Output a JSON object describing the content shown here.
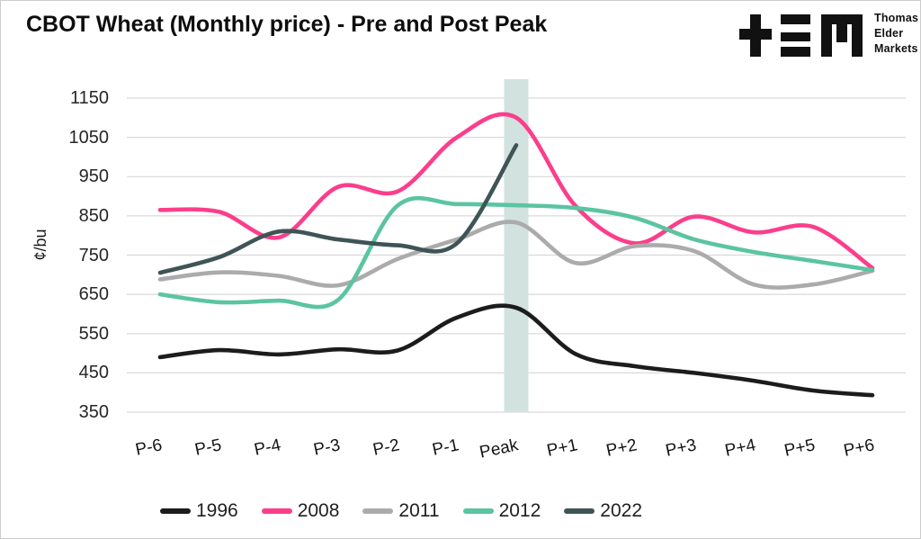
{
  "header": {
    "logo_text": [
      "Thomas",
      "Elder",
      "Markets"
    ]
  },
  "chart_data": {
    "type": "line",
    "title": "CBOT Wheat (Monthly price) - Pre and Post Peak",
    "xlabel": "",
    "ylabel": "¢/bu",
    "ylim": [
      350,
      1150
    ],
    "yticks": [
      1150,
      1050,
      950,
      850,
      750,
      650,
      550,
      450,
      350
    ],
    "grid": "horizontal",
    "grid_color": "#d9d9d9",
    "legend_position": "bottom",
    "categories": [
      "P-6",
      "P-5",
      "P-4",
      "P-3",
      "P-2",
      "P-1",
      "Peak",
      "P+1",
      "P+2",
      "P+3",
      "P+4",
      "P+5",
      "P+6"
    ],
    "highlight_band": {
      "category": "Peak",
      "color": "#d2e2df"
    },
    "series": [
      {
        "name": "1996",
        "color": "#1c1c1c",
        "values": [
          490,
          508,
          497,
          510,
          507,
          591,
          616,
          498,
          467,
          450,
          430,
          405,
          393
        ]
      },
      {
        "name": "2008",
        "color": "#fb3e8c",
        "values": [
          865,
          860,
          795,
          924,
          912,
          1050,
          1100,
          875,
          780,
          848,
          808,
          822,
          717
        ]
      },
      {
        "name": "2011",
        "color": "#ababab",
        "values": [
          688,
          706,
          697,
          673,
          740,
          790,
          833,
          730,
          773,
          760,
          675,
          675,
          710
        ]
      },
      {
        "name": "2012",
        "color": "#5bc4a1",
        "values": [
          650,
          630,
          634,
          636,
          876,
          880,
          877,
          870,
          845,
          790,
          758,
          735,
          712
        ]
      },
      {
        "name": "2022",
        "color": "#3f5456",
        "values": [
          705,
          745,
          810,
          790,
          775,
          780,
          1030,
          null,
          null,
          null,
          null,
          null,
          null
        ]
      }
    ]
  }
}
